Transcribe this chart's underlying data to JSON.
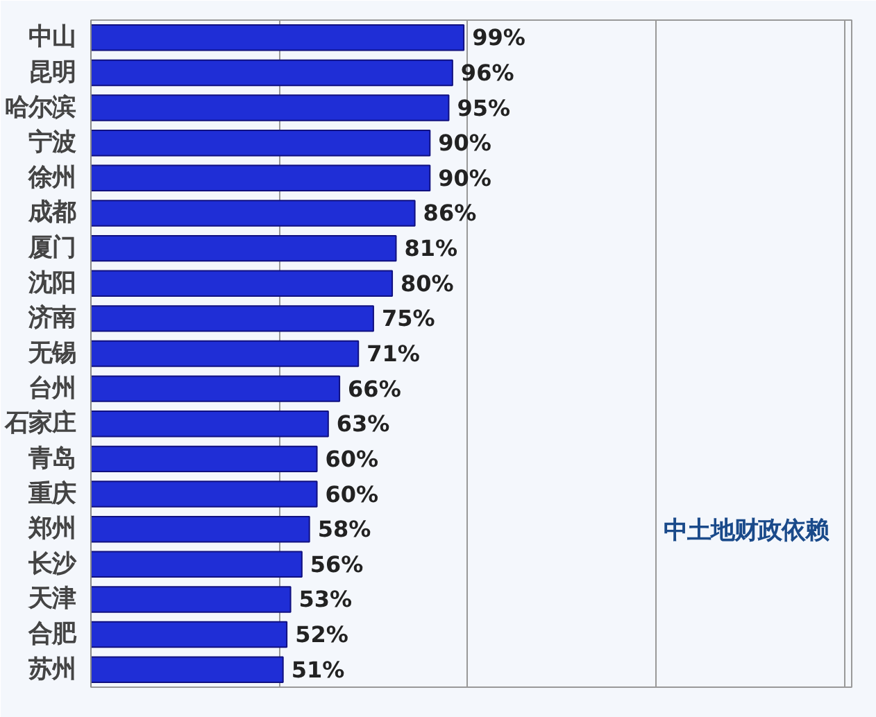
{
  "chart_data": {
    "type": "bar",
    "orientation": "horizontal",
    "categories": [
      "中山",
      "昆明",
      "哈尔滨",
      "宁波",
      "徐州",
      "成都",
      "厦门",
      "沈阳",
      "济南",
      "无锡",
      "台州",
      "石家庄",
      "青岛",
      "重庆",
      "郑州",
      "长沙",
      "天津",
      "合肥",
      "苏州"
    ],
    "values": [
      99,
      96,
      95,
      90,
      90,
      86,
      81,
      80,
      75,
      71,
      66,
      63,
      60,
      60,
      58,
      56,
      53,
      52,
      51
    ],
    "value_labels": [
      "99%",
      "96%",
      "95%",
      "90%",
      "90%",
      "86%",
      "81%",
      "80%",
      "75%",
      "71%",
      "66%",
      "63%",
      "60%",
      "60%",
      "58%",
      "56%",
      "53%",
      "52%",
      "51%"
    ],
    "color": "#1f2ed6",
    "xlim": [
      0,
      202
    ],
    "xticks": [
      {
        "value": 50,
        "label": null
      },
      {
        "value": 100,
        "label": null
      },
      {
        "value": 150,
        "label": null
      },
      {
        "value": 200,
        "label": null
      }
    ],
    "tick_labels": "y",
    "grid": "x",
    "annotations": [
      "中土地财政依赖"
    ]
  }
}
